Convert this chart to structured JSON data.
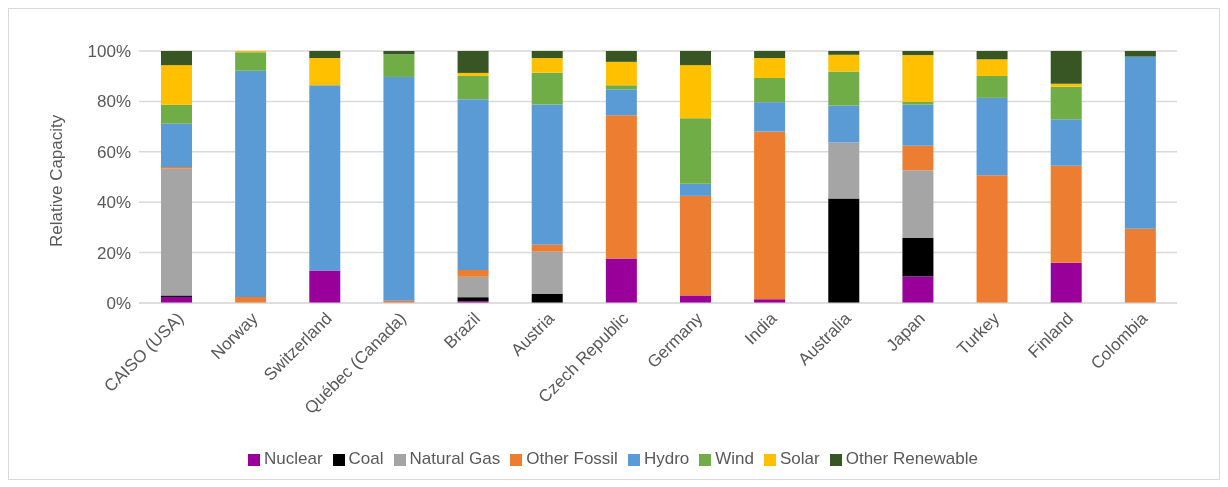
{
  "chart_data": {
    "type": "bar",
    "stacked": true,
    "ylabel": "Relative Capacity",
    "categories": [
      "CAISO (USA)",
      "Norway",
      "Switzerland",
      "Québec (Canada)",
      "Brazil",
      "Austria",
      "Czech Republic",
      "Germany",
      "India",
      "Australia",
      "Japan",
      "Turkey",
      "Finland",
      "Colombia"
    ],
    "series": [
      {
        "name": "Nuclear",
        "color": "#990099",
        "values": [
          2.4,
          0,
          12.9,
          0,
          0.7,
          0,
          17.7,
          3.0,
          1.5,
          0,
          10.5,
          0,
          16.0,
          0
        ]
      },
      {
        "name": "Coal",
        "color": "#000000",
        "values": [
          0.6,
          0,
          0,
          0,
          1.6,
          3.6,
          0,
          0,
          0,
          41.5,
          15.3,
          0,
          0,
          0
        ]
      },
      {
        "name": "Natural Gas",
        "color": "#a5a5a5",
        "values": [
          50.3,
          0,
          0,
          0,
          8.1,
          16.8,
          0,
          0,
          0,
          22.2,
          26.9,
          0,
          0,
          0
        ]
      },
      {
        "name": "Other Fossil",
        "color": "#ed7d31",
        "values": [
          0.7,
          2.4,
          0,
          0.9,
          2.7,
          2.7,
          56.8,
          39.5,
          66.5,
          0,
          9.7,
          50.7,
          38.5,
          29.5
        ]
      },
      {
        "name": "Hydro",
        "color": "#5b9bd5",
        "values": [
          17.2,
          89.8,
          73.5,
          88.8,
          67.8,
          55.7,
          10.3,
          4.8,
          11.7,
          14.7,
          16.3,
          30.7,
          18.4,
          68.3
        ]
      },
      {
        "name": "Wind",
        "color": "#70ad47",
        "values": [
          7.5,
          7.3,
          0,
          9.0,
          9.2,
          12.6,
          1.6,
          26.0,
          9.6,
          13.5,
          1.2,
          8.7,
          12.9,
          0
        ]
      },
      {
        "name": "Solar",
        "color": "#ffc000",
        "values": [
          15.7,
          0.5,
          10.8,
          0,
          1.2,
          5.8,
          9.3,
          21.1,
          7.9,
          6.6,
          18.5,
          6.6,
          1.2,
          0
        ]
      },
      {
        "name": "Other Renewable",
        "color": "#375623",
        "values": [
          5.6,
          0,
          2.8,
          1.3,
          8.7,
          2.8,
          4.3,
          5.6,
          2.8,
          1.5,
          1.6,
          3.3,
          13.0,
          2.2
        ]
      }
    ],
    "ylim": [
      0,
      100
    ],
    "yticks": [
      {
        "value": 0,
        "label": "0%"
      },
      {
        "value": 20,
        "label": "20%"
      },
      {
        "value": 40,
        "label": "40%"
      },
      {
        "value": 60,
        "label": "60%"
      },
      {
        "value": 80,
        "label": "80%"
      },
      {
        "value": 100,
        "label": "100%"
      }
    ],
    "grid": "y",
    "legend": "bottom"
  }
}
